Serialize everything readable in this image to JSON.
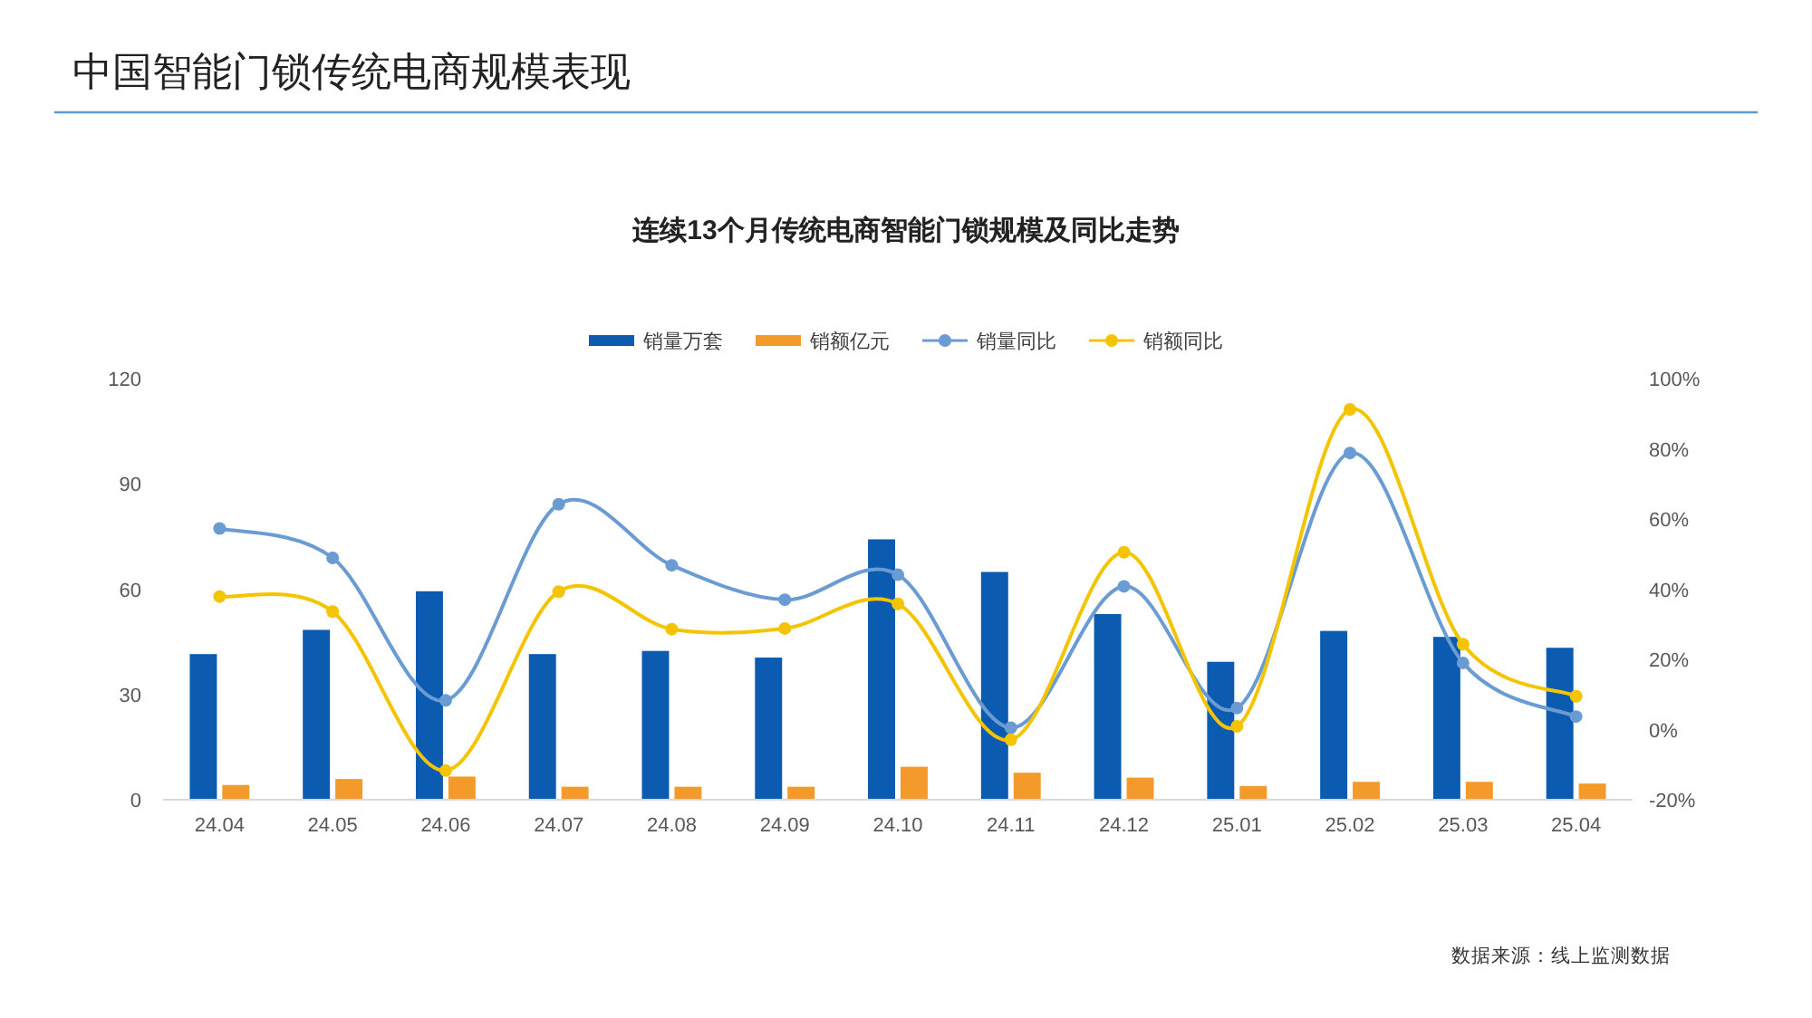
{
  "chart_data": {
    "type": "bar",
    "title": "中国智能门锁传统电商规模表现",
    "subtitle": "连续13个月传统电商智能门锁规模及同比走势",
    "categories": [
      "24.04",
      "24.05",
      "24.06",
      "24.07",
      "24.08",
      "24.09",
      "24.10",
      "24.11",
      "24.12",
      "25.01",
      "25.02",
      "25.03",
      "25.04"
    ],
    "series": [
      {
        "name": "销量万套",
        "color": "#0b5bb0",
        "values": [
          41.5,
          48.4,
          59.4,
          41.5,
          42.4,
          40.5,
          74.2,
          64.9,
          52.9,
          39.3,
          48.1,
          46.4,
          43.3
        ]
      },
      {
        "name": "销额亿元",
        "color": "#f39a2b",
        "values": [
          4.2,
          5.9,
          6.6,
          3.7,
          3.7,
          3.7,
          9.4,
          7.7,
          6.3,
          3.9,
          5.1,
          5.1,
          4.6
        ]
      },
      {
        "name": "销量同比",
        "type": "line",
        "axis": "y2",
        "color": "#6a9bd2",
        "values": [
          57.3,
          48.9,
          8.3,
          64.2,
          46.8,
          37.0,
          44.1,
          0.5,
          40.8,
          6.1,
          78.8,
          19.0,
          3.7
        ]
      },
      {
        "name": "销额同比",
        "type": "line",
        "axis": "y2",
        "color": "#f5c400",
        "values": [
          37.9,
          33.6,
          -11.7,
          39.3,
          28.6,
          28.8,
          35.8,
          -2.9,
          50.5,
          0.9,
          91.2,
          24.3,
          9.5
        ]
      }
    ],
    "ylim": [
      0,
      120
    ],
    "yticks": [
      0,
      30,
      60,
      90,
      120
    ],
    "y2lim": [
      -20,
      100
    ],
    "y2ticks": [
      {
        "value": -20,
        "label": "-20%"
      },
      {
        "value": 0,
        "label": "0%"
      },
      {
        "value": 20,
        "label": "20%"
      },
      {
        "value": 40,
        "label": "40%"
      },
      {
        "value": 60,
        "label": "60%"
      },
      {
        "value": 80,
        "label": "80%"
      },
      {
        "value": 100,
        "label": "100%"
      }
    ],
    "legend": "top",
    "marker": "circle",
    "line_style": "solid",
    "annotations": [
      "数据来源：线上监测数据"
    ]
  }
}
